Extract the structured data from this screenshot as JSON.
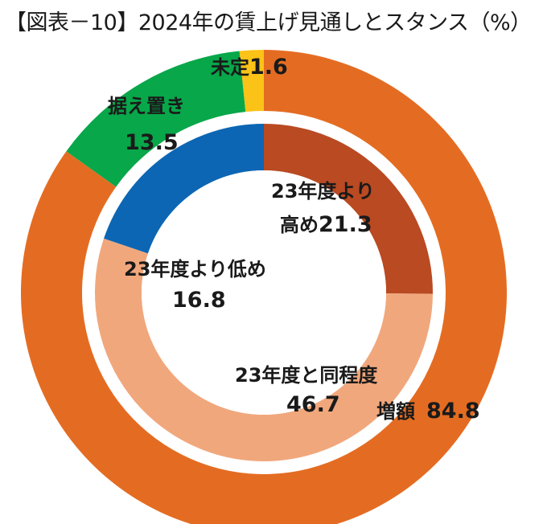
{
  "title": "【図表－10】2024年の賃上げ見通しとスタンス（%）",
  "chart_data": {
    "type": "pie",
    "rings": [
      {
        "ring": "outer",
        "slices": [
          {
            "name": "増額",
            "value": 84.8,
            "color": "#E46C22"
          },
          {
            "name": "据え置き",
            "value": 13.5,
            "color": "#08A74A"
          },
          {
            "name": "未定",
            "value": 1.6,
            "color": "#FBC217"
          }
        ]
      },
      {
        "ring": "inner",
        "slices": [
          {
            "name": "23年度より高め",
            "value": 21.3,
            "color": "#B94A22"
          },
          {
            "name": "23年度と同程度",
            "value": 46.7,
            "color": "#F1A77C"
          },
          {
            "name": "23年度より低め",
            "value": 16.8,
            "color": "#0C66B3"
          }
        ]
      }
    ],
    "labels": {
      "zoutei": {
        "name": "未定",
        "value": "1.6"
      },
      "sueoki": {
        "name": "据え置き",
        "value": "13.5"
      },
      "zougaku": {
        "name": "増額",
        "value": "84.8"
      },
      "takame": {
        "name": "23年度より",
        "name2": "高め",
        "value": "21.3"
      },
      "doutei": {
        "name": "23年度と同程度",
        "value": "46.7"
      },
      "hikume": {
        "name": "23年度より低め",
        "value": "16.8"
      }
    }
  }
}
